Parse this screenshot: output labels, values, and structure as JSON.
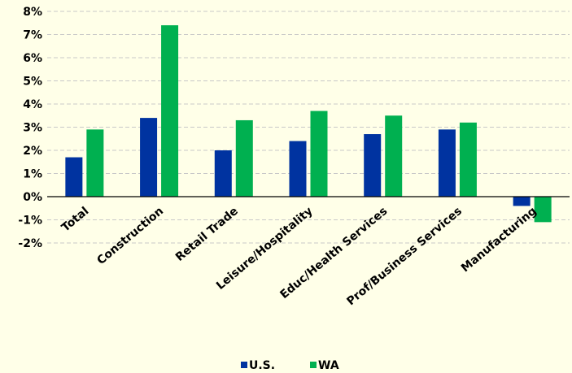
{
  "chart_data": {
    "type": "bar",
    "title": "",
    "xlabel": "",
    "ylabel": "",
    "categories": [
      "Total",
      "Construction",
      "Retail Trade",
      "Leisure/Hospitality",
      "Educ/Health Services",
      "Prof/Business Services",
      "Manufacturing"
    ],
    "series": [
      {
        "name": "U.S.",
        "color": "#0033a0",
        "values": [
          1.7,
          3.4,
          2.0,
          2.4,
          2.7,
          2.9,
          -0.4
        ]
      },
      {
        "name": "WA",
        "color": "#00b050",
        "values": [
          2.9,
          7.4,
          3.3,
          3.7,
          3.5,
          3.2,
          -1.1
        ]
      }
    ],
    "ylim": [
      -2,
      8
    ],
    "yticks": [
      -2,
      -1,
      0,
      1,
      2,
      3,
      4,
      5,
      6,
      7,
      8
    ],
    "ytick_format": "percent",
    "grid": true,
    "legend_position": "bottom"
  }
}
